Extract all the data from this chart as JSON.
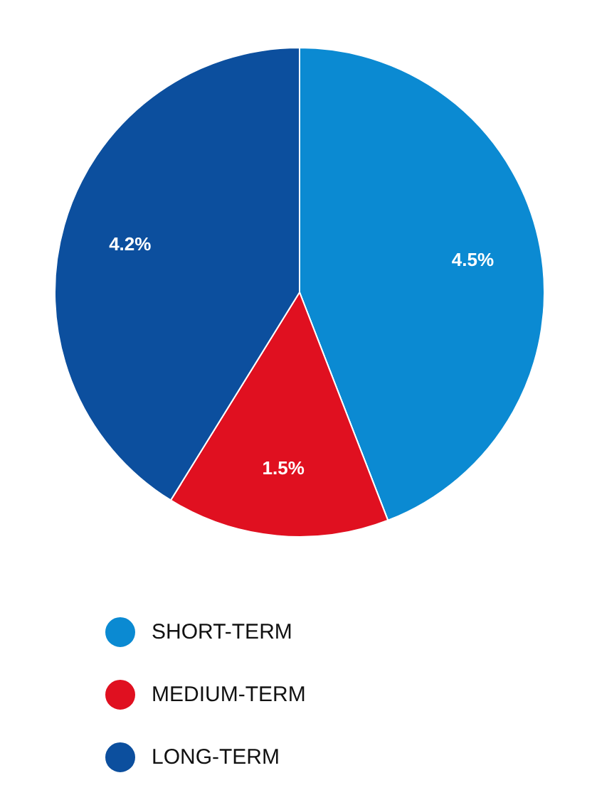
{
  "chart_data": {
    "type": "pie",
    "categories": [
      "SHORT-TERM",
      "MEDIUM-TERM",
      "LONG-TERM"
    ],
    "values": [
      4.5,
      1.5,
      4.2
    ],
    "colors": [
      "#0b8ad2",
      "#e01020",
      "#0c4f9e"
    ],
    "value_labels": [
      "4.5%",
      "1.5%",
      "4.2%"
    ],
    "legend": "bottom"
  }
}
